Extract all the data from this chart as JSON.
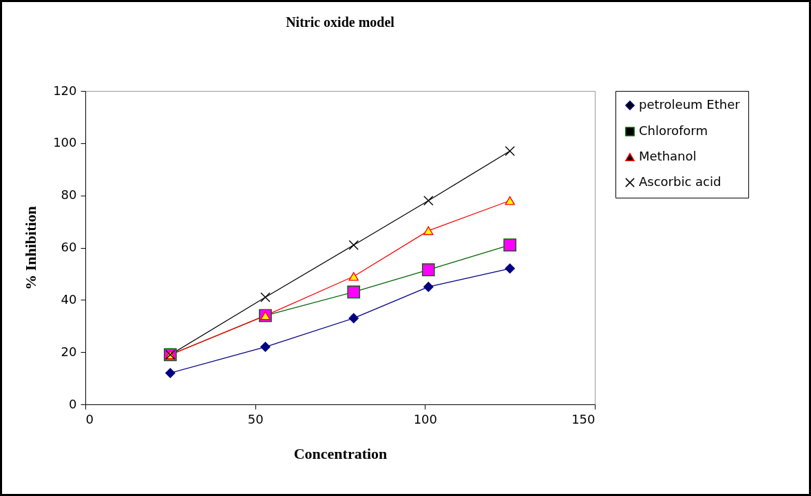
{
  "chart_data": {
    "type": "line",
    "title": "Nitric oxide model",
    "xlabel": "Concentration",
    "ylabel": "% Inhibition",
    "xlim": [
      0,
      150
    ],
    "xticks": [
      0,
      50,
      100,
      150
    ],
    "ylim": [
      0,
      120
    ],
    "yticks": [
      0,
      20,
      40,
      60,
      80,
      100,
      120
    ],
    "grid": false,
    "legend": "right",
    "series": [
      {
        "name": "petroleum Ether",
        "color": "#000080",
        "marker": "diamond",
        "colors": [
          "#000080",
          "#000080",
          "#000080",
          "#000080",
          "#000080"
        ],
        "x": [
          25,
          53,
          79,
          101,
          125
        ],
        "values": [
          12,
          22,
          33,
          45,
          52
        ]
      },
      {
        "name": "Chloroform",
        "color": "#006400",
        "marker": "square",
        "colors": [
          "#ff00ff",
          "#ff00ff",
          "#ff00ff",
          "#ff00ff",
          "#ff00ff"
        ],
        "x": [
          25,
          53,
          79,
          101,
          125
        ],
        "values": [
          19,
          34,
          43,
          51.5,
          61
        ]
      },
      {
        "name": "Methanol",
        "color": "#ff0000",
        "marker": "triangle",
        "colors": [
          "#ffff00",
          "#ffff00",
          "#ffff00",
          "#ffff00",
          "#ffff00"
        ],
        "x": [
          25,
          53,
          79,
          101,
          125
        ],
        "values": [
          19,
          34,
          49,
          66.5,
          78
        ]
      },
      {
        "name": "Ascorbic acid",
        "color": "#000000",
        "marker": "cross",
        "colors": [
          null,
          null,
          null,
          null,
          null
        ],
        "x": [
          25,
          53,
          79,
          101,
          125
        ],
        "values": [
          19,
          41,
          61,
          78,
          97
        ]
      }
    ]
  }
}
